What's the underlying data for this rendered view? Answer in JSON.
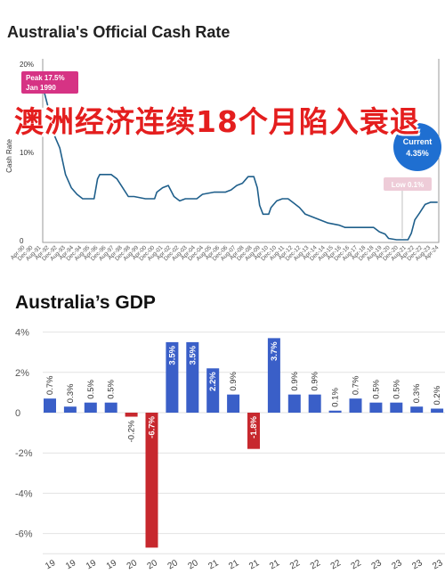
{
  "chart_data": [
    {
      "type": "line",
      "title": "Australia's Official Cash Rate",
      "ylabel": "Cash Rate",
      "ylim": [
        0,
        20
      ],
      "yticks": [
        "20%",
        "10%",
        "0"
      ],
      "grid": false,
      "xtick_labels": [
        "Apr-90",
        "Dec-90",
        "Aug-91",
        "Apr-92",
        "Dec-92",
        "Aug-93",
        "Apr-94",
        "Dec-94",
        "Aug-95",
        "Apr-96",
        "Dec-96",
        "Aug-97",
        "Apr-98",
        "Dec-98",
        "Aug-99",
        "Apr-00",
        "Dec-00",
        "Aug-01",
        "Apr-02",
        "Dec-02",
        "Aug-03",
        "Apr-04",
        "Dec-04",
        "Aug-05",
        "Apr-06",
        "Dec-06",
        "Aug-07",
        "Apr-08",
        "Dec-08",
        "Aug-09",
        "Apr-10",
        "Dec-10",
        "Aug-11",
        "Apr-12",
        "Dec-12",
        "Aug-13",
        "Apr-14",
        "Dec-14",
        "Aug-15",
        "Apr-16",
        "Dec-16",
        "Aug-17",
        "Apr-18",
        "Dec-18",
        "Aug-19",
        "Apr-20",
        "Dec-20",
        "Aug-21",
        "Apr-22",
        "Dec-22",
        "Aug-23",
        "Apr-24"
      ],
      "series": [
        {
          "x": [
            1990.0,
            1990.5,
            1991.0,
            1991.5,
            1992.0,
            1992.5,
            1993.0,
            1993.5,
            1994.0,
            1994.5,
            1994.8,
            1995.0,
            1996.0,
            1996.5,
            1997.0,
            1997.5,
            1998.0,
            1999.0,
            1999.8,
            2000.0,
            2000.5,
            2001.0,
            2001.5,
            2002.0,
            2002.5,
            2003.0,
            2003.5,
            2004.0,
            2005.0,
            2006.0,
            2006.5,
            2007.0,
            2007.5,
            2008.0,
            2008.5,
            2008.8,
            2009.0,
            2009.3,
            2009.8,
            2010.0,
            2010.5,
            2011.0,
            2011.5,
            2012.0,
            2012.5,
            2013.0,
            2013.5,
            2014.0,
            2015.0,
            2016.0,
            2016.5,
            2017.0,
            2018.0,
            2019.0,
            2019.5,
            2020.0,
            2020.3,
            2021.0,
            2022.0,
            2022.3,
            2022.6,
            2023.0,
            2023.5,
            2024.0,
            2024.6
          ],
          "y": [
            17.5,
            15.0,
            12.0,
            10.5,
            7.5,
            6.0,
            5.25,
            4.75,
            4.75,
            4.75,
            7.0,
            7.5,
            7.5,
            7.0,
            6.0,
            5.0,
            5.0,
            4.75,
            4.75,
            5.5,
            6.0,
            6.25,
            5.0,
            4.5,
            4.75,
            4.75,
            4.75,
            5.25,
            5.5,
            5.5,
            5.75,
            6.25,
            6.5,
            7.25,
            7.25,
            6.0,
            4.0,
            3.0,
            3.0,
            3.75,
            4.5,
            4.75,
            4.75,
            4.25,
            3.75,
            3.0,
            2.75,
            2.5,
            2.0,
            1.75,
            1.5,
            1.5,
            1.5,
            1.5,
            1.0,
            0.75,
            0.25,
            0.1,
            0.1,
            0.85,
            2.35,
            3.1,
            4.1,
            4.35,
            4.35
          ]
        }
      ],
      "annotations": [
        {
          "label": "Peak 17.5%",
          "sublabel": "Jan 1990",
          "x": 1990.0,
          "y": 17.5
        },
        {
          "label": "Low 0.1%",
          "x": 2021.5,
          "y": 0.1
        },
        {
          "label": "Current",
          "sublabel": "4.35%",
          "x": 2024.6,
          "y": 4.35
        }
      ],
      "overlay_text": "澳洲经济连续18个月陷入衰退",
      "colors": {
        "line": "#1f5f8b",
        "peak": "#d63384",
        "low": "#eeccd8",
        "current": "#1f6fd1",
        "overlay": "#e41e1e"
      }
    },
    {
      "type": "bar",
      "title": "Australia’s GDP",
      "ylim": [
        -7,
        4
      ],
      "yticks": [
        "4%",
        "2%",
        "0",
        "-2%",
        "-4%",
        "-6%"
      ],
      "grid": true,
      "categories": [
        "19",
        "19",
        "19",
        "19",
        "20",
        "20",
        "20",
        "20",
        "21",
        "21",
        "21",
        "21",
        "22",
        "22",
        "22",
        "22",
        "23",
        "23",
        "23",
        "23"
      ],
      "values": [
        0.7,
        0.3,
        0.5,
        0.5,
        -0.2,
        -6.7,
        3.5,
        3.5,
        2.2,
        0.9,
        -1.8,
        3.7,
        0.9,
        0.9,
        0.1,
        0.7,
        0.5,
        0.5,
        0.3,
        0.2
      ],
      "value_labels": [
        "0.7%",
        "0.3%",
        "0.5%",
        "0.5%",
        "-0.2%",
        "-6.7%",
        "3.5%",
        "3.5%",
        "2.2%",
        "0.9%",
        "-1.8%",
        "3.7%",
        "0.9%",
        "0.9%",
        "0.1%",
        "0.7%",
        "0.5%",
        "0.5%",
        "0.3%",
        "0.2%"
      ],
      "colors": {
        "positive": "#3a5fc8",
        "negative": "#c7282e"
      }
    }
  ]
}
